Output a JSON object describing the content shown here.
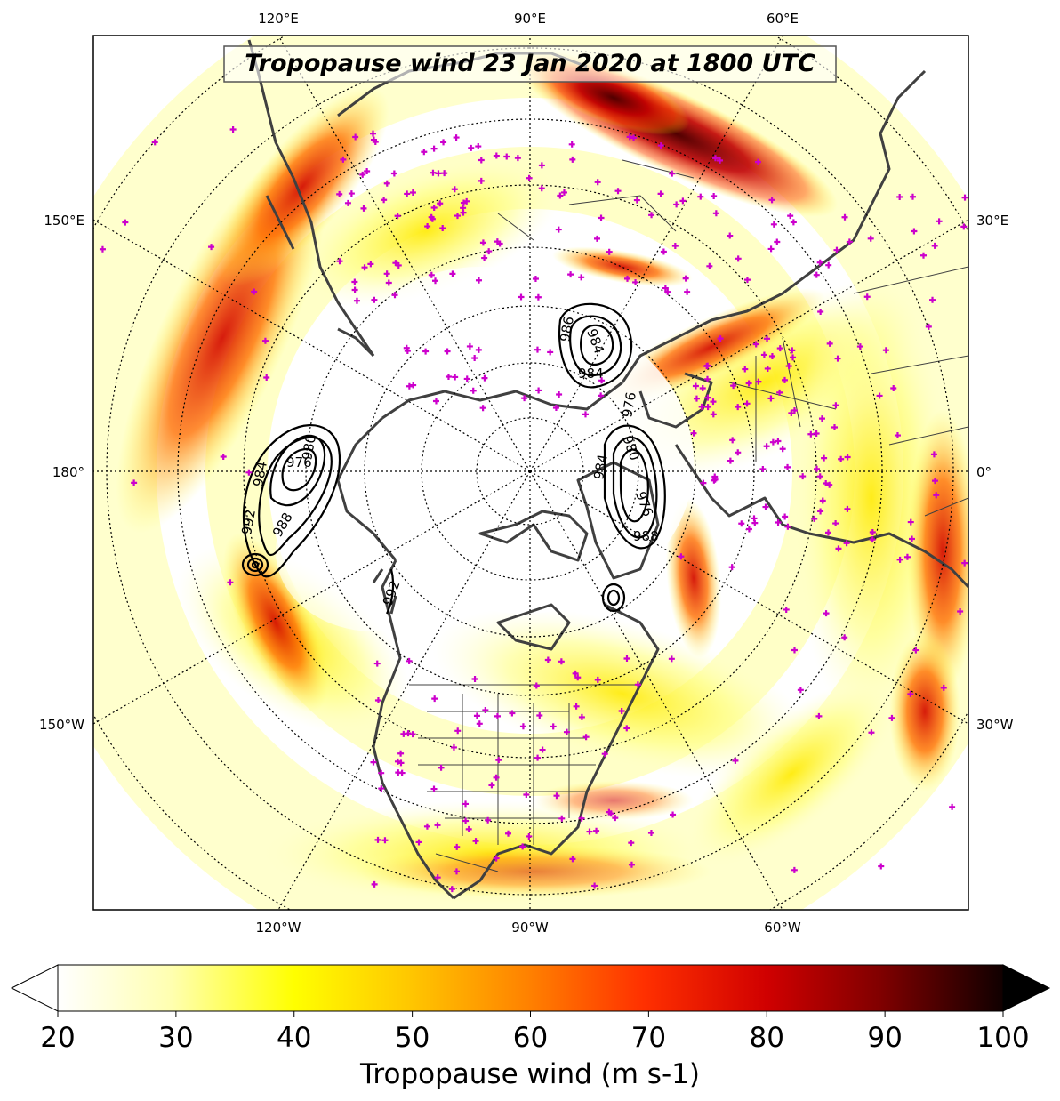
{
  "title": "Tropopause wind 23 Jan 2020 at 1800 UTC",
  "colorbar": {
    "label": "Tropopause wind (m s-1)",
    "min": 20,
    "max": 100,
    "ticks": [
      "20",
      "30",
      "40",
      "50",
      "60",
      "70",
      "80",
      "90",
      "100"
    ],
    "colormap": "hot_r",
    "extend": "both"
  },
  "longitude_labels": {
    "top": [
      "120°E",
      "90°E",
      "60°E"
    ],
    "left": [
      "150°E",
      "180°",
      "150°W"
    ],
    "right": [
      "30°E",
      "0°",
      "30°W"
    ],
    "bottom": [
      "120°W",
      "90°W",
      "60°W"
    ]
  },
  "contour_labels": [
    "984",
    "976",
    "980",
    "992",
    "988",
    "984",
    "992",
    "986",
    "984",
    "976",
    "984",
    "980",
    "976",
    "988"
  ],
  "colors": {
    "coastline": "#404040",
    "station_marker": "#cc00cc",
    "contour": "#000000"
  }
}
